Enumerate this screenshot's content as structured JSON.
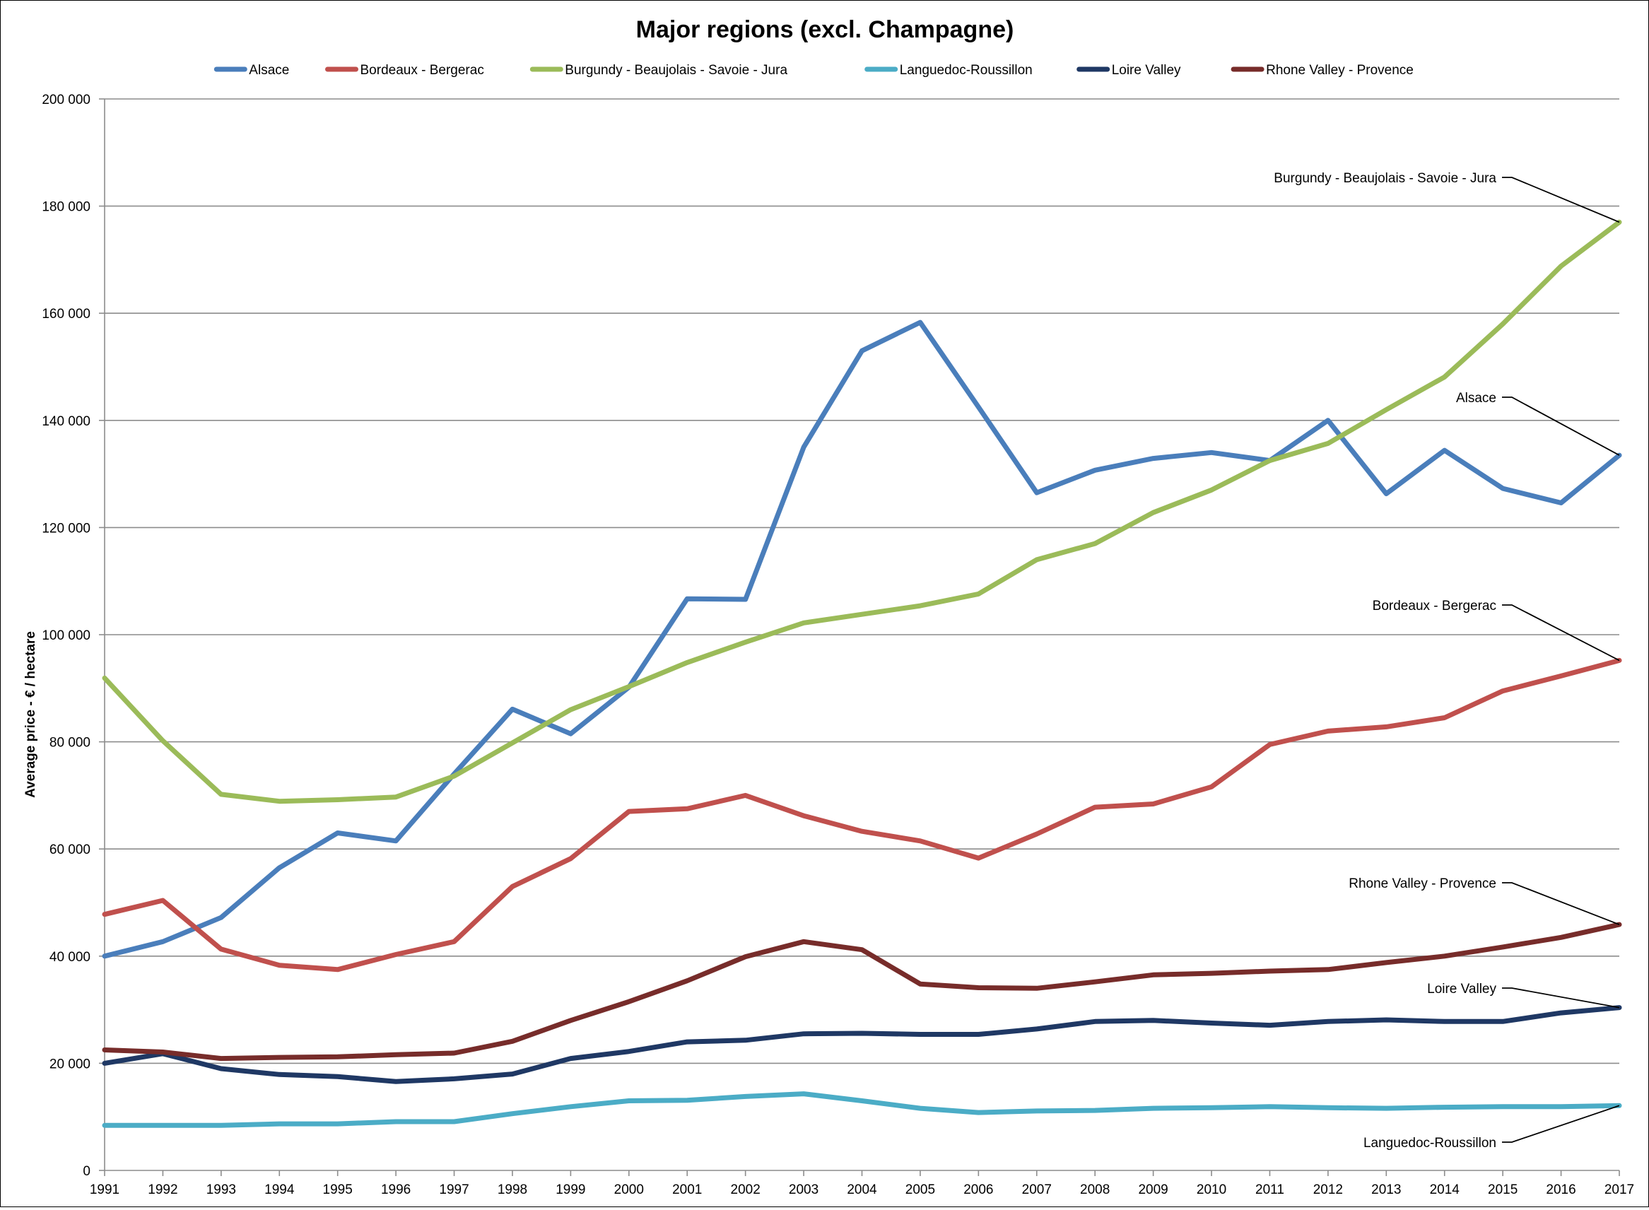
{
  "chart_data": {
    "type": "line",
    "title": "Major regions (excl. Champagne)",
    "xlabel": "",
    "ylabel": "Average price - € / hectare",
    "x": [
      "1991",
      "1992",
      "1993",
      "1994",
      "1995",
      "1996",
      "1997",
      "1998",
      "1999",
      "2000",
      "2001",
      "2002",
      "2003",
      "2004",
      "2005",
      "2006",
      "2007",
      "2008",
      "2009",
      "2010",
      "2011",
      "2012",
      "2013",
      "2014",
      "2015",
      "2016",
      "2017"
    ],
    "ylim": [
      0,
      200000
    ],
    "ytick_labels": [
      "0",
      "20 000",
      "40 000",
      "60 000",
      "80 000",
      "100 000",
      "120 000",
      "140 000",
      "160 000",
      "180 000",
      "200 000"
    ],
    "grid": "horizontal",
    "legend_position": "top",
    "series": [
      {
        "name": "Alsace",
        "color": "#4A7EBB",
        "values": [
          40000,
          42700,
          47200,
          56500,
          63000,
          61500,
          74000,
          86100,
          81500,
          90200,
          106700,
          106600,
          135000,
          153000,
          158300,
          142500,
          126500,
          130700,
          132900,
          134000,
          132500,
          140000,
          126300,
          134400,
          127300,
          124600,
          133500
        ]
      },
      {
        "name": "Bordeaux - Bergerac",
        "color": "#C0504D",
        "values": [
          47800,
          50400,
          41300,
          38300,
          37500,
          40300,
          42700,
          53000,
          58200,
          67000,
          67500,
          70000,
          66200,
          63300,
          61500,
          58300,
          62800,
          67800,
          68400,
          71600,
          79500,
          82000,
          82800,
          84500,
          89500,
          92300,
          95200
        ]
      },
      {
        "name": "Burgundy - Beaujolais - Savoie - Jura",
        "color": "#9BBB59",
        "values": [
          91900,
          80200,
          70200,
          68900,
          69200,
          69700,
          73600,
          79800,
          86000,
          90300,
          94800,
          98600,
          102200,
          103800,
          105400,
          107600,
          114000,
          117000,
          122800,
          127000,
          132500,
          135700,
          142000,
          148100,
          158000,
          168800,
          177000
        ]
      },
      {
        "name": "Languedoc-Roussillon",
        "color": "#4BACC6",
        "values": [
          8400,
          8400,
          8400,
          8700,
          8700,
          9100,
          9100,
          10600,
          11900,
          13000,
          13100,
          13800,
          14300,
          13000,
          11600,
          10800,
          11100,
          11200,
          11600,
          11700,
          11900,
          11700,
          11600,
          11800,
          11900,
          11900,
          12100
        ]
      },
      {
        "name": "Loire Valley",
        "color": "#1F3864",
        "values": [
          20000,
          21800,
          19000,
          17900,
          17500,
          16600,
          17100,
          18000,
          20900,
          22200,
          24000,
          24300,
          25500,
          25600,
          25400,
          25400,
          26400,
          27800,
          28000,
          27500,
          27100,
          27800,
          28100,
          27800,
          27800,
          29400,
          30400
        ]
      },
      {
        "name": "Rhone Valley - Provence",
        "color": "#772C2A",
        "values": [
          22500,
          22100,
          20900,
          21100,
          21200,
          21600,
          21900,
          24100,
          28000,
          31500,
          35400,
          39900,
          42700,
          41200,
          34800,
          34100,
          34000,
          35200,
          36500,
          36800,
          37200,
          37500,
          38800,
          40000,
          41700,
          43500,
          45900
        ]
      }
    ],
    "annotations": [
      {
        "series": 2,
        "text": "Burgundy - Beaujolais - Savoie - Jura"
      },
      {
        "series": 0,
        "text": "Alsace"
      },
      {
        "series": 1,
        "text": "Bordeaux - Bergerac"
      },
      {
        "series": 5,
        "text": "Rhone Valley - Provence"
      },
      {
        "series": 4,
        "text": "Loire Valley"
      },
      {
        "series": 3,
        "text": "Languedoc-Roussillon"
      }
    ]
  }
}
